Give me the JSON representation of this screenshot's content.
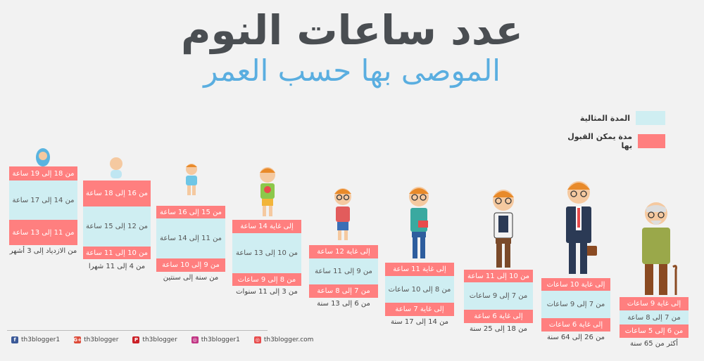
{
  "title": "عدد ساعات النوم",
  "subtitle": "الموصى بها حسب العمر",
  "legend": {
    "ideal": "المدة المثالية",
    "acceptable": "مدة يمكن القبول بها"
  },
  "colors": {
    "ideal": "#cfeef2",
    "acceptable": "#ff7f7f"
  },
  "groups": [
    {
      "top": "من 18 إلى 19 ساعة",
      "ideal": "من 14 إلى 17 ساعة",
      "bottom": "من 11 إلى 13 ساعة",
      "age": "من الازدياد إلى 3 أشهر",
      "icon": "newborn-icon"
    },
    {
      "top": "من 16 إلى 18 ساعة",
      "ideal": "من 12 إلى 15 ساعة",
      "bottom": "من 10 إلى 11 ساعة",
      "age": "من 4 إلى 11 شهرا",
      "icon": "infant-icon"
    },
    {
      "top": "من 15 إلى 16 ساعة",
      "ideal": "من 11 إلى 14 ساعة",
      "bottom": "من 9 إلى 10 ساعة",
      "age": "من سنة إلى سنتين",
      "icon": "toddler-icon"
    },
    {
      "top": "إلى غاية 14 ساعة",
      "ideal": "من 10 إلى 13 ساعة",
      "bottom": "من 8 إلى 9 ساعات",
      "age": "من 3 إلى 11 سنوات",
      "icon": "preschooler-icon"
    },
    {
      "top": "إلى غاية 12 ساعة",
      "ideal": "من 9 إلى 11 ساعة",
      "bottom": "من 7 إلى 8 ساعة",
      "age": "من 6 إلى 13 سنة",
      "icon": "school-child-icon"
    },
    {
      "top": "إلى غاية 11 ساعة",
      "ideal": "من 8 إلى 10 ساعات",
      "bottom": "إلى غاية 7 ساعة",
      "age": "من 14 إلى 17 سنة",
      "icon": "teen-icon"
    },
    {
      "top": "من 10 إلى 11 ساعة",
      "ideal": "من 7 إلى 9 ساعات",
      "bottom": "إلى غاية 6 ساعة",
      "age": "من 18 إلى 25 سنة",
      "icon": "young-adult-icon"
    },
    {
      "top": "إلى غاية 10 ساعات",
      "ideal": "من 7 إلى 9 ساعات",
      "bottom": "إلى غاية 6 ساعات",
      "age": "من 26 إلى 64 سنة",
      "icon": "adult-icon"
    },
    {
      "top": "إلى غاية 9 ساعات",
      "ideal": "من 7 إلى 8 ساعة",
      "bottom": "من 6 إلى 5 ساعات",
      "age": "أكثر من 65 سنة",
      "icon": "senior-icon"
    }
  ],
  "footer": [
    {
      "icon": "facebook-icon",
      "glyph": "f",
      "color": "#3b5998",
      "label": "th3blogger1"
    },
    {
      "icon": "google-plus-icon",
      "glyph": "G+",
      "color": "#dd4b39",
      "label": "th3blogger"
    },
    {
      "icon": "pinterest-icon",
      "glyph": "P",
      "color": "#cb2027",
      "label": "th3blogger"
    },
    {
      "icon": "instagram-icon",
      "glyph": "◎",
      "color": "#c13584",
      "label": "th3blogger1"
    },
    {
      "icon": "website-icon",
      "glyph": "◎",
      "color": "#e84c4c",
      "label": "th3blogger.com"
    }
  ]
}
